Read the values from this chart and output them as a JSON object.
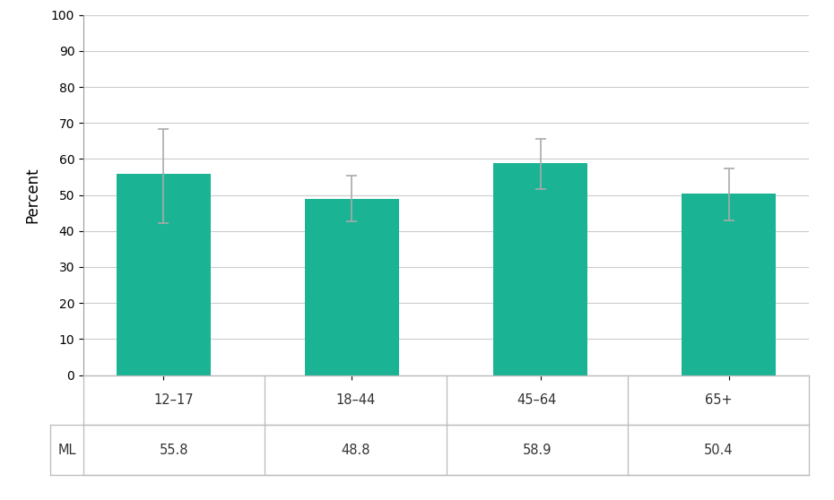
{
  "categories": [
    "12–17",
    "18–44",
    "45–64",
    "65+"
  ],
  "values": [
    55.8,
    48.8,
    58.9,
    50.4
  ],
  "errors_upper": [
    12.5,
    6.5,
    6.8,
    7.0
  ],
  "errors_lower": [
    13.5,
    6.0,
    7.2,
    7.5
  ],
  "bar_color": "#1ab394",
  "error_color": "#aaaaaa",
  "ylabel": "Percent",
  "ylim": [
    0,
    100
  ],
  "yticks": [
    0,
    10,
    20,
    30,
    40,
    50,
    60,
    70,
    80,
    90,
    100
  ],
  "table_header": "ML",
  "table_values": [
    "55.8",
    "48.8",
    "58.9",
    "50.4"
  ],
  "background_color": "#ffffff",
  "grid_color": "#cccccc",
  "line_color": "#bbbbbb"
}
